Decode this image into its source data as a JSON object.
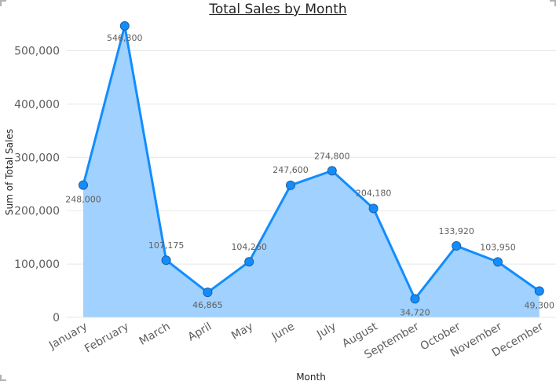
{
  "chart_data": {
    "type": "area",
    "title": "Total Sales by Month",
    "xlabel": "Month",
    "ylabel": "Sum of Total Sales",
    "categories": [
      "January",
      "February",
      "March",
      "April",
      "May",
      "June",
      "July",
      "August",
      "September",
      "October",
      "November",
      "December"
    ],
    "series": [
      {
        "values": [
          248000,
          546300,
          107175,
          46865,
          104260,
          247600,
          274800,
          204180,
          34720,
          133920,
          103950,
          49300
        ],
        "labels": [
          "248,000",
          "546,300",
          "107,175",
          "46,865",
          "104,260",
          "247,600",
          "274,800",
          "204,180",
          "34,720",
          "133,920",
          "103,950",
          "49,300"
        ],
        "color": "#118dff",
        "fill": "#a0d1ff"
      }
    ],
    "ylim": [
      0,
      546300
    ],
    "yticks": [
      0,
      100000,
      200000,
      300000,
      400000,
      500000
    ],
    "ytick_labels": [
      "0",
      "100,000",
      "200,000",
      "300,000",
      "400,000",
      "500,000"
    ],
    "grid": true,
    "legend": "none"
  }
}
